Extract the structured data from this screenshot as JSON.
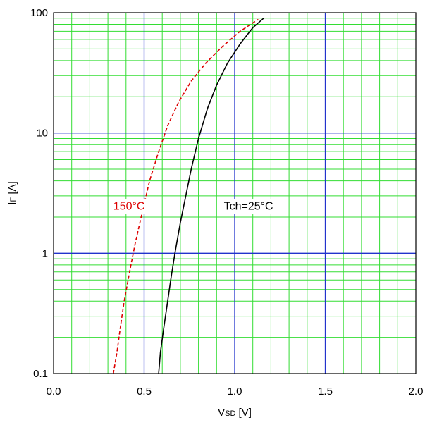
{
  "chart_data": {
    "type": "line",
    "title": "",
    "xlabel": {
      "main": "V",
      "sub": "SD",
      "unit": " [V]"
    },
    "ylabel": {
      "main": "I",
      "sub": "F",
      "unit": " [A]"
    },
    "x_scale": "linear",
    "y_scale": "log",
    "xlim": [
      0.0,
      2.0
    ],
    "ylim": [
      0.1,
      100
    ],
    "x_ticks": [
      {
        "value": 0.0,
        "label": "0.0"
      },
      {
        "value": 0.5,
        "label": "0.5"
      },
      {
        "value": 1.0,
        "label": "1.0"
      },
      {
        "value": 1.5,
        "label": "1.5"
      },
      {
        "value": 2.0,
        "label": "2.0"
      }
    ],
    "y_ticks": [
      {
        "value": 0.1,
        "label": "0.1"
      },
      {
        "value": 1,
        "label": "1"
      },
      {
        "value": 10,
        "label": "10"
      },
      {
        "value": 100,
        "label": "100"
      }
    ],
    "grid": true,
    "colors": {
      "minor_grid": "#33dd33",
      "major_grid": "#2233cc",
      "frame": "#000000"
    },
    "series": [
      {
        "name": "Tch=25°C",
        "color": "#000000",
        "dash": false,
        "x": [
          0.58,
          0.59,
          0.61,
          0.63,
          0.65,
          0.67,
          0.7,
          0.73,
          0.76,
          0.8,
          0.85,
          0.9,
          0.96,
          1.03,
          1.1,
          1.16
        ],
        "y": [
          0.1,
          0.15,
          0.25,
          0.4,
          0.65,
          1.0,
          1.8,
          3.0,
          5.0,
          9.0,
          16,
          25,
          38,
          55,
          75,
          90
        ]
      },
      {
        "name": "150°C",
        "color": "#dd0000",
        "dash": true,
        "x": [
          0.33,
          0.35,
          0.37,
          0.39,
          0.42,
          0.45,
          0.49,
          0.53,
          0.58,
          0.63,
          0.69,
          0.76,
          0.84,
          0.93,
          1.03,
          1.13
        ],
        "y": [
          0.1,
          0.15,
          0.25,
          0.4,
          0.7,
          1.2,
          2.2,
          4.0,
          7.0,
          11.5,
          18,
          27,
          38,
          52,
          70,
          88
        ]
      }
    ],
    "annotations": [
      {
        "text": "150°C",
        "color": "#dd0000",
        "x": 0.33,
        "y": 2.5
      },
      {
        "text": "Tch=25°C",
        "color": "#000000",
        "x": 0.94,
        "y": 2.5
      }
    ]
  }
}
